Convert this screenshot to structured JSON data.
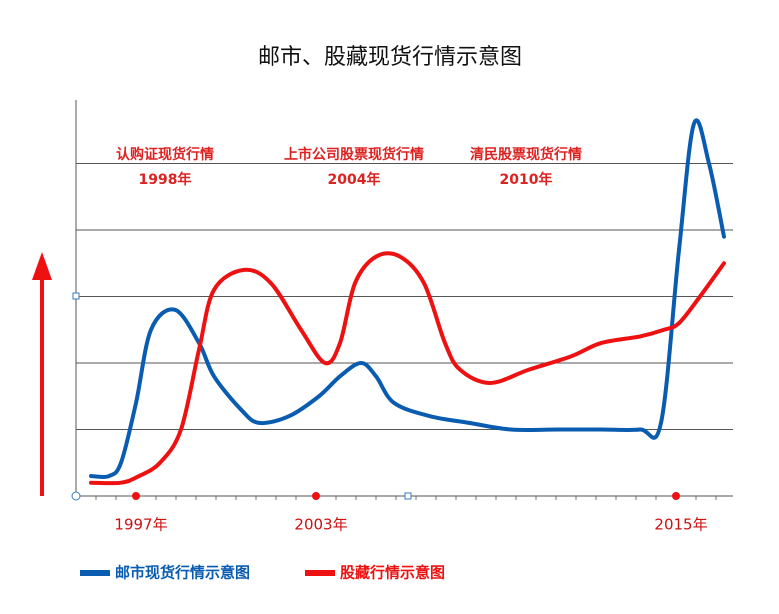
{
  "chart_data": {
    "type": "line",
    "title": "邮市、股藏现货行情示意图",
    "annotations": [
      {
        "lines": [
          "认购证现货行情",
          "1998年"
        ]
      },
      {
        "lines": [
          "上市公司股票现货行情",
          "2004年"
        ]
      },
      {
        "lines": [
          "清民股票现货行情",
          "2010年"
        ]
      }
    ],
    "series": [
      {
        "name": "邮市现货行情示意图",
        "color": "#0a5cb0",
        "x": [
          1995.5,
          1996.1,
          1996.5,
          1997.0,
          1997.5,
          1998.3,
          1999.1,
          1999.6,
          2000.5,
          2001.1,
          2002.1,
          2003.1,
          2003.8,
          2004.5,
          2005.0,
          2005.6,
          2006.8,
          2008.1,
          2009.5,
          2011.1,
          2012.5,
          2013.8,
          2014.5,
          2015.1,
          2015.6,
          2016.1,
          2016.6
        ],
        "values": [
          0.3,
          0.3,
          0.5,
          1.4,
          2.5,
          2.8,
          2.3,
          1.8,
          1.3,
          1.1,
          1.2,
          1.5,
          1.8,
          2.0,
          1.8,
          1.4,
          1.2,
          1.1,
          1.0,
          1.0,
          1.0,
          1.0,
          1.1,
          3.7,
          5.6,
          5.0,
          3.9
        ]
      },
      {
        "name": "股藏行情示意图",
        "color": "#ee1111",
        "x": [
          1995.5,
          1996.5,
          1997.1,
          1997.8,
          1998.5,
          1999.1,
          1999.6,
          2000.6,
          2001.5,
          2002.5,
          2003.3,
          2003.8,
          2004.3,
          2005.0,
          2005.8,
          2006.6,
          2007.3,
          2007.8,
          2008.8,
          2010.1,
          2011.5,
          2012.5,
          2013.8,
          2014.6,
          2015.1,
          2015.8,
          2016.6
        ],
        "values": [
          0.2,
          0.2,
          0.3,
          0.5,
          1.0,
          2.2,
          3.1,
          3.4,
          3.2,
          2.5,
          2.0,
          2.3,
          3.2,
          3.6,
          3.6,
          3.2,
          2.3,
          1.9,
          1.7,
          1.9,
          2.1,
          2.3,
          2.4,
          2.5,
          2.6,
          3.0,
          3.5
        ]
      }
    ],
    "xlim": [
      1995,
      2016.9
    ],
    "xticks": [
      {
        "value": 1997,
        "label": "1997年"
      },
      {
        "value": 2003,
        "label": "2003年"
      },
      {
        "value": 2015,
        "label": "2015年"
      }
    ],
    "ylim": [
      0,
      6
    ],
    "yticks": [
      1,
      2,
      3,
      4,
      5
    ],
    "grid": true
  }
}
